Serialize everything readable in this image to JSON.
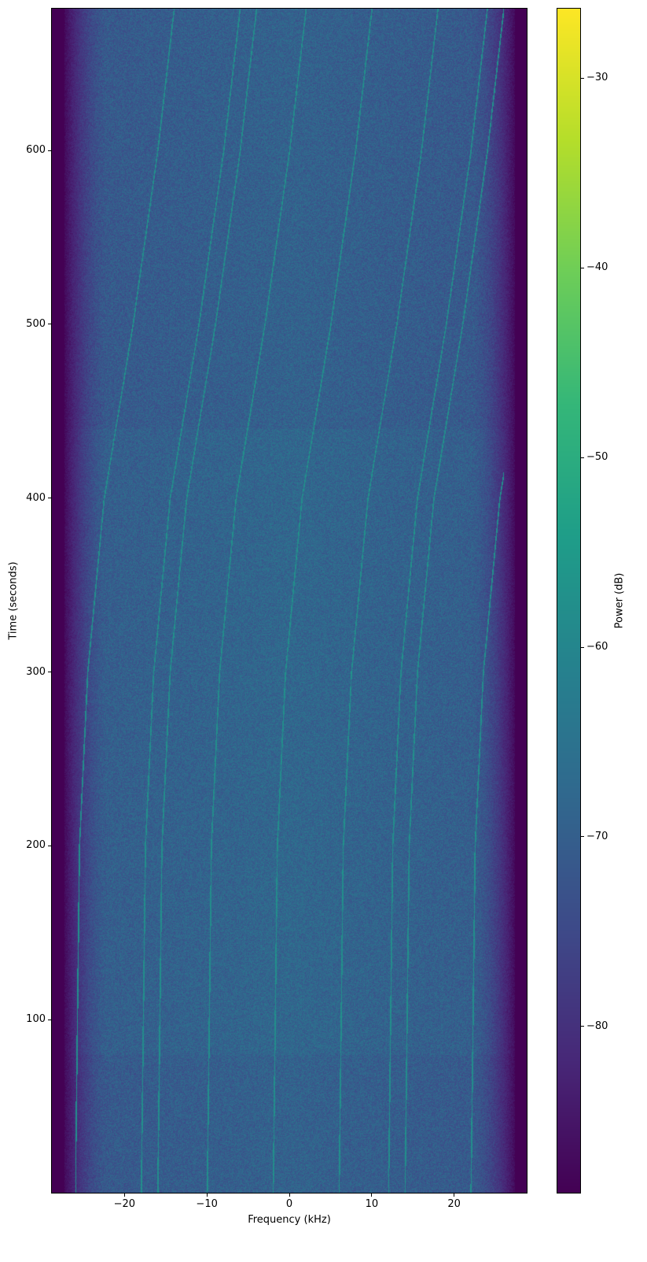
{
  "chart_data": {
    "type": "heatmap",
    "title": "",
    "xlabel": "Frequency (kHz)",
    "ylabel": "Time (seconds)",
    "xlim": [
      -28.9,
      28.9
    ],
    "ylim": [
      0,
      682
    ],
    "xticks": [
      -20,
      -10,
      0,
      10,
      20
    ],
    "xtick_labels": [
      "−20",
      "−10",
      "0",
      "10",
      "20"
    ],
    "yticks": [
      100,
      200,
      300,
      400,
      500,
      600
    ],
    "ytick_labels": [
      "100",
      "200",
      "300",
      "400",
      "500",
      "600"
    ],
    "colormap": "viridis",
    "colorbar": {
      "label": "Power (dB)",
      "range": [
        -88.8,
        -26.3
      ],
      "ticks": [
        -30,
        -40,
        -50,
        -60,
        -70,
        -80
      ],
      "tick_labels": [
        "−30",
        "−40",
        "−50",
        "−60",
        "−70",
        "−80"
      ]
    },
    "noise_floor_db": -68,
    "passband_edges_khz": [
      -26,
      26
    ],
    "out_of_band_db": -88,
    "tones_start_khz": [
      -26,
      -18,
      -16,
      -10,
      -2,
      6,
      12,
      14,
      22
    ],
    "tone_drift": {
      "time_s": [
        0,
        200,
        300,
        400,
        500,
        600,
        682
      ],
      "shift_khz": [
        0,
        0.5,
        1.5,
        3.5,
        7,
        10,
        12
      ]
    },
    "tone_level_db": -58
  }
}
